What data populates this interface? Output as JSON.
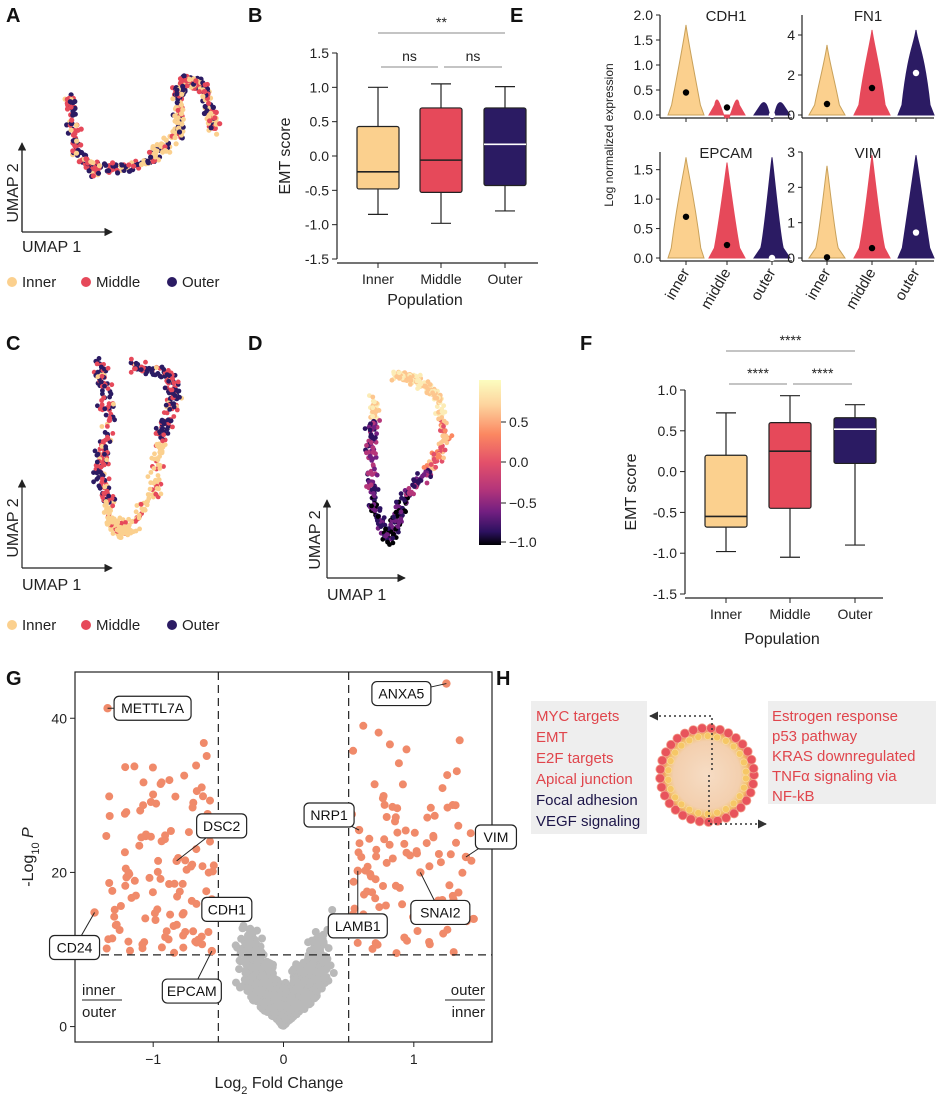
{
  "colors": {
    "inner": "#fbd08e",
    "middle": "#e6495a",
    "outer": "#2b1b63",
    "gray": "#b9b9b9",
    "volcano": "#f08a6a"
  },
  "panel_letters": [
    "A",
    "B",
    "C",
    "D",
    "E",
    "F",
    "G",
    "H"
  ],
  "umap": {
    "xlabel": "UMAP 1",
    "ylabel": "UMAP 2"
  },
  "legend_labels": [
    "Inner",
    "Middle",
    "Outer"
  ],
  "colorbar": {
    "ticks": [
      "0.5",
      "0.0",
      "−0.5",
      "−1.0"
    ]
  },
  "chart_data": [
    {
      "panel": "B",
      "type": "box",
      "ylabel": "EMT score",
      "xlabel": "Population",
      "categories": [
        "Inner",
        "Middle",
        "Outer"
      ],
      "ylim": [
        -1.5,
        1.5
      ],
      "yticks": [
        "1.5",
        "1.0",
        "0.5",
        "0.0",
        "-0.5",
        "-1.0",
        "-1.5"
      ],
      "boxes": [
        {
          "name": "Inner",
          "min": -0.85,
          "q1": -0.48,
          "median": -0.23,
          "q3": 0.43,
          "max": 1.0
        },
        {
          "name": "Middle",
          "min": -0.98,
          "q1": -0.53,
          "median": -0.06,
          "q3": 0.7,
          "max": 1.05
        },
        {
          "name": "Outer",
          "min": -0.8,
          "q1": -0.43,
          "median": 0.17,
          "q3": 0.7,
          "max": 1.01
        }
      ],
      "significance": [
        {
          "pair": "Inner-Middle",
          "label": "ns"
        },
        {
          "pair": "Middle-Outer",
          "label": "ns"
        },
        {
          "pair": "Inner-Outer",
          "label": "**"
        }
      ]
    },
    {
      "panel": "E",
      "type": "violin",
      "ylabel": "Log normalized expression",
      "categories": [
        "inner",
        "middle",
        "outer"
      ],
      "genes": [
        {
          "name": "CDH1",
          "yticks": [
            "0.0",
            "0.5",
            "1.0",
            "1.5",
            "2.0"
          ],
          "ymax": 2.0,
          "medians": [
            0.45,
            0.15,
            0.0
          ]
        },
        {
          "name": "FN1",
          "yticks": [
            "0",
            "2",
            "4"
          ],
          "ymax": 5,
          "medians": [
            0.55,
            1.35,
            2.1
          ]
        },
        {
          "name": "EPCAM",
          "yticks": [
            "0.0",
            "0.5",
            "1.0",
            "1.5"
          ],
          "ymax": 1.8,
          "medians": [
            0.7,
            0.22,
            0.0
          ]
        },
        {
          "name": "VIM",
          "yticks": [
            "0",
            "1",
            "2",
            "3"
          ],
          "ymax": 3,
          "medians": [
            0.02,
            0.28,
            0.72
          ]
        }
      ]
    },
    {
      "panel": "F",
      "type": "box",
      "ylabel": "EMT score",
      "xlabel": "Population",
      "categories": [
        "Inner",
        "Middle",
        "Outer"
      ],
      "ylim": [
        -1.5,
        1.0
      ],
      "yticks": [
        "1.0",
        "0.5",
        "0.0",
        "-0.5",
        "-1.0",
        "-1.5"
      ],
      "boxes": [
        {
          "name": "Inner",
          "min": -0.98,
          "q1": -0.68,
          "median": -0.55,
          "q3": 0.2,
          "max": 0.72
        },
        {
          "name": "Middle",
          "min": -1.05,
          "q1": -0.45,
          "median": 0.25,
          "q3": 0.6,
          "max": 0.93
        },
        {
          "name": "Outer",
          "min": -0.9,
          "q1": 0.1,
          "median": 0.52,
          "q3": 0.66,
          "max": 0.82
        }
      ],
      "significance": [
        {
          "pair": "Inner-Middle",
          "label": "****"
        },
        {
          "pair": "Middle-Outer",
          "label": "****"
        },
        {
          "pair": "Inner-Outer",
          "label": "****"
        }
      ]
    },
    {
      "panel": "G",
      "type": "scatter",
      "xlabel_main": "Log",
      "xlabel_sub": "2",
      "xlabel_tail": " Fold Change",
      "ylabel_main": "-Log",
      "ylabel_sub": "10",
      "ylabel_tail": "P",
      "xticks": [
        "−1",
        "0",
        "1"
      ],
      "yticks": [
        "0",
        "20",
        "40"
      ],
      "xlim": [
        -1.6,
        1.6
      ],
      "ylim": [
        -2,
        46
      ],
      "thresholds": {
        "fc": 0.5,
        "p": 9.3
      },
      "corner_left": [
        "inner",
        "outer"
      ],
      "corner_right": [
        "outer",
        "inner"
      ],
      "labeled_genes": [
        {
          "gene": "METTL7A",
          "x": -1.35,
          "y": 41.3
        },
        {
          "gene": "DSC2",
          "x": -0.82,
          "y": 21.5
        },
        {
          "gene": "CD24",
          "x": -1.45,
          "y": 14.8
        },
        {
          "gene": "CDH1",
          "x": -0.55,
          "y": 16.5
        },
        {
          "gene": "EPCAM",
          "x": -0.55,
          "y": 9.8
        },
        {
          "gene": "ANXA5",
          "x": 1.25,
          "y": 44.5
        },
        {
          "gene": "NRP1",
          "x": 0.58,
          "y": 25.5
        },
        {
          "gene": "LAMB1",
          "x": 0.57,
          "y": 20.2
        },
        {
          "gene": "VIM",
          "x": 1.4,
          "y": 22.0
        },
        {
          "gene": "SNAI2",
          "x": 1.05,
          "y": 20.0
        }
      ]
    }
  ],
  "pathways": {
    "left": [
      {
        "text": "MYC targets",
        "style": "red"
      },
      {
        "text": "EMT",
        "style": "red"
      },
      {
        "text": "E2F targets",
        "style": "red"
      },
      {
        "text": "Apical junction",
        "style": "red"
      },
      {
        "text": "Focal adhesion",
        "style": "dark"
      },
      {
        "text": "VEGF signaling",
        "style": "dark"
      }
    ],
    "right": [
      {
        "text": "Estrogen response",
        "style": "red"
      },
      {
        "text": "p53 pathway",
        "style": "red"
      },
      {
        "text": "KRAS downregulated",
        "style": "red"
      },
      {
        "text": "TNFα signaling via",
        "style": "red"
      },
      {
        "text": "NF-kB",
        "style": "red"
      }
    ]
  }
}
